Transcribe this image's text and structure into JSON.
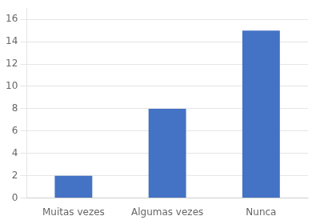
{
  "chart_data": {
    "type": "bar",
    "categories": [
      "Muitas vezes",
      "Algumas vezes",
      "Nunca"
    ],
    "values": [
      2,
      8,
      15
    ],
    "color": "#4472C4",
    "ylim": [
      0,
      17
    ],
    "yticks": [
      0,
      2,
      4,
      6,
      8,
      10,
      12,
      14,
      16
    ],
    "grid": true
  }
}
